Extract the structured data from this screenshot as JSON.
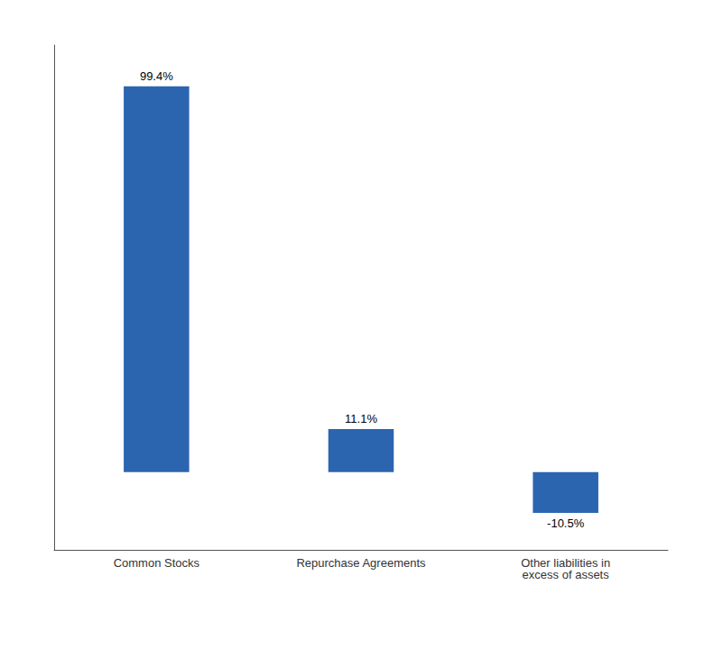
{
  "chart_data": {
    "type": "bar",
    "categories": [
      "Common Stocks",
      "Repurchase Agreements",
      "Other liabilities in\nexcess of assets"
    ],
    "values": [
      99.4,
      11.1,
      -10.5
    ],
    "value_labels": [
      "99.4%",
      "11.1%",
      "-10.5%"
    ],
    "data_labels": true,
    "color": "#2B65B0",
    "ylim": [
      -20,
      110
    ],
    "grid": false,
    "tick_labels": "x"
  }
}
